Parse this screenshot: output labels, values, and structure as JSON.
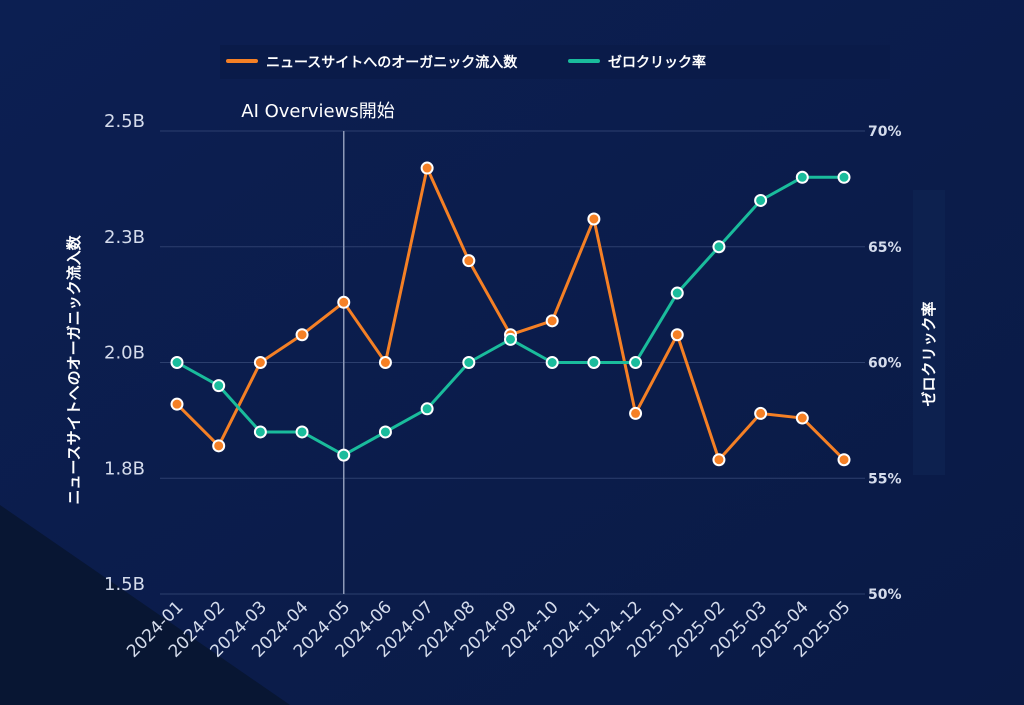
{
  "chart_data": {
    "type": "line",
    "categories": [
      "2024-01",
      "2024-02",
      "2024-03",
      "2024-04",
      "2024-05",
      "2024-06",
      "2024-07",
      "2024-08",
      "2024-09",
      "2024-10",
      "2024-11",
      "2024-12",
      "2025-01",
      "2025-02",
      "2025-03",
      "2025-04",
      "2025-05"
    ],
    "series": [
      {
        "name": "ニュースサイトへのオーガニック流入数",
        "axis": "left",
        "color": "#f58025",
        "values": [
          1.91,
          1.82,
          2.0,
          2.06,
          2.13,
          2.0,
          2.42,
          2.22,
          2.06,
          2.09,
          2.31,
          1.89,
          2.06,
          1.79,
          1.89,
          1.88,
          1.79
        ]
      },
      {
        "name": "ゼロクリック率",
        "axis": "right",
        "color": "#1abc9c",
        "values": [
          60,
          59,
          57,
          57,
          56,
          57,
          58,
          60,
          61,
          60,
          60,
          60,
          63,
          65,
          67,
          68,
          68
        ]
      }
    ],
    "ylabel": "ニュースサイトへのオーガニック流入数",
    "ylabel_right": "ゼロクリック率",
    "ylim": [
      1.5,
      2.5
    ],
    "ylim_right": [
      50,
      70
    ],
    "yticks_left": [
      {
        "value": 2.5,
        "label": "2.5B"
      },
      {
        "value": 2.25,
        "label": "2.3B"
      },
      {
        "value": 2.0,
        "label": "2.0B"
      },
      {
        "value": 1.75,
        "label": "1.8B"
      },
      {
        "value": 1.5,
        "label": "1.5B"
      }
    ],
    "yticks_right": [
      {
        "value": 70,
        "label": "70%"
      },
      {
        "value": 65,
        "label": "65%"
      },
      {
        "value": 60,
        "label": "60%"
      },
      {
        "value": 55,
        "label": "55%"
      },
      {
        "value": 50,
        "label": "50%"
      }
    ],
    "annotation": {
      "category": "2024-05",
      "text": "AI Overviews開始"
    },
    "legend_position": "top",
    "grid": true
  }
}
